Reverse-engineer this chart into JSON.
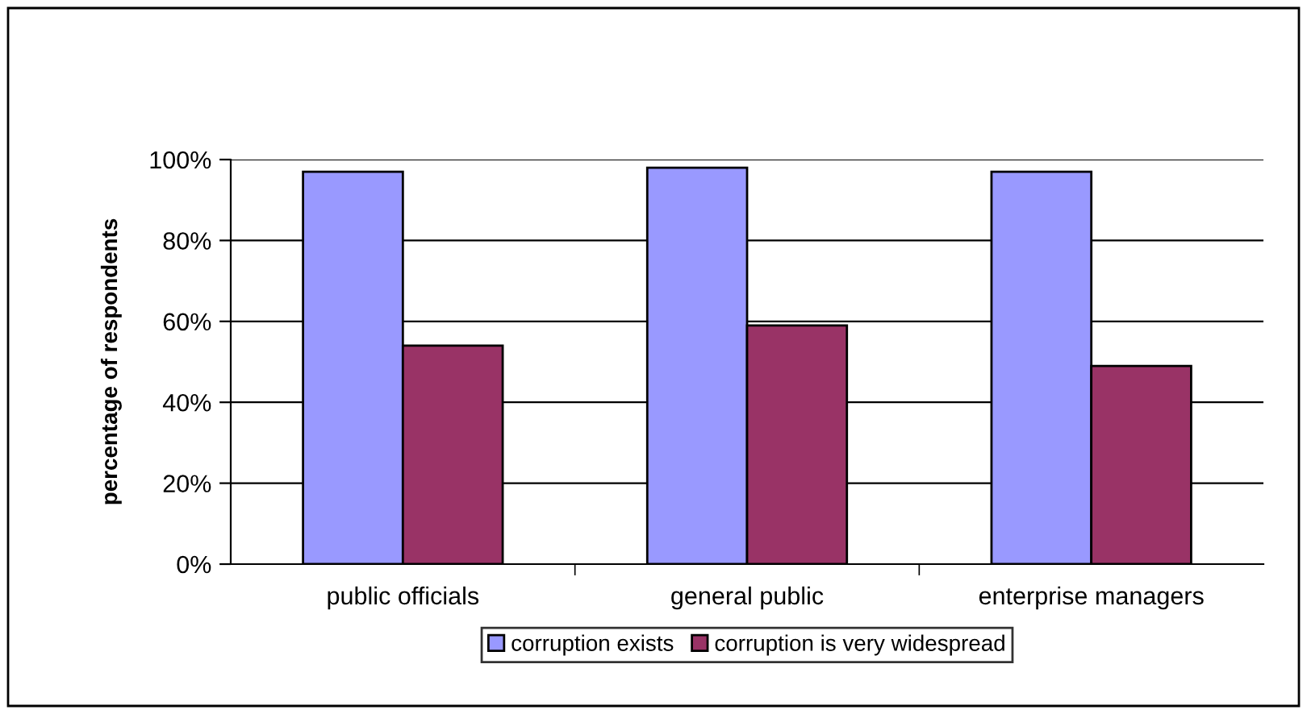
{
  "chart_data": {
    "type": "bar",
    "ylabel": "percentage of respondents",
    "categories": [
      "public officials",
      "general public",
      "enterprise managers"
    ],
    "series": [
      {
        "name": "corruption exists",
        "color": "#9999ff",
        "values": [
          97,
          98,
          97
        ]
      },
      {
        "name": "corruption is very widespread",
        "color": "#993366",
        "values": [
          54,
          59,
          49
        ]
      }
    ],
    "ylim": [
      0,
      100
    ],
    "yticks": [
      {
        "value": 0,
        "label": "0%"
      },
      {
        "value": 20,
        "label": "20%"
      },
      {
        "value": 40,
        "label": "40%"
      },
      {
        "value": 60,
        "label": "60%"
      },
      {
        "value": 80,
        "label": "80%"
      },
      {
        "value": 100,
        "label": "100%"
      }
    ],
    "grid": "y",
    "legend": "bottom"
  }
}
